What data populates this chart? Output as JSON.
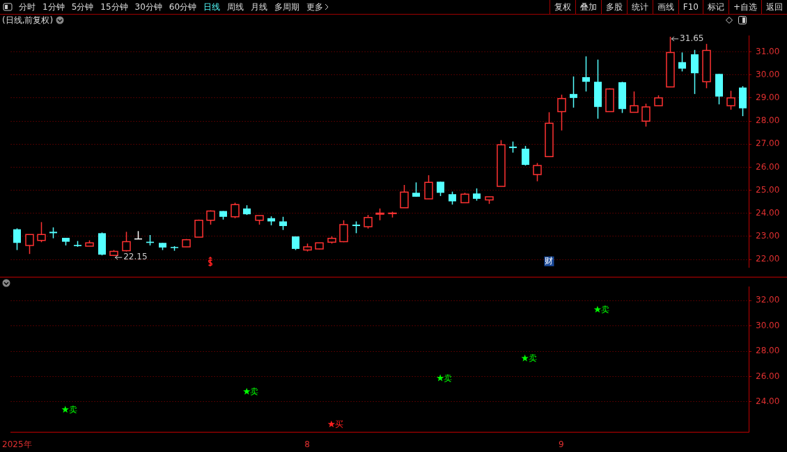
{
  "chart_data": [
    {
      "type": "other",
      "annotations": [
        "分时",
        "1分钟",
        "5分钟",
        "15分钟",
        "30分钟",
        "60分钟",
        "日线",
        "周线",
        "月线",
        "多周期",
        "更多",
        "复权",
        "叠加",
        "多股",
        "统计",
        "画线",
        "F10",
        "标记",
        "+自选",
        "返回"
      ]
    },
    {
      "type": "candlestick",
      "title": "(日线,前复权)",
      "categories": [
        null,
        null,
        null,
        null,
        null,
        null,
        null,
        null,
        null,
        null,
        null,
        null,
        null,
        null,
        null,
        null,
        null,
        null,
        null,
        null,
        null,
        null,
        null,
        null,
        null,
        null,
        null,
        null,
        null,
        null,
        null,
        null,
        null,
        null,
        null,
        null,
        null,
        null,
        null,
        null,
        null,
        null,
        null,
        null,
        null,
        null,
        null,
        null,
        null,
        null,
        null,
        null,
        null,
        null,
        null,
        null,
        null,
        null,
        null,
        null,
        null
      ],
      "ohlc": [
        [
          23.31,
          23.35,
          22.41,
          22.72
        ],
        [
          22.61,
          23.08,
          22.24,
          23.08
        ],
        [
          22.83,
          23.62,
          22.75,
          23.08
        ],
        [
          23.2,
          23.39,
          22.92,
          23.14
        ],
        [
          22.94,
          22.94,
          22.61,
          22.77
        ],
        [
          22.63,
          22.8,
          22.55,
          22.58
        ],
        [
          22.58,
          22.83,
          22.58,
          22.72
        ],
        [
          23.14,
          23.17,
          22.18,
          22.21
        ],
        [
          22.18,
          22.41,
          22.15,
          22.35
        ],
        [
          22.38,
          23.2,
          22.35,
          22.77
        ],
        [
          22.89,
          23.23,
          22.89,
          22.89
        ],
        [
          22.77,
          23.06,
          22.61,
          22.72
        ],
        [
          22.72,
          22.72,
          22.41,
          22.52
        ],
        [
          22.52,
          22.58,
          22.38,
          22.49
        ],
        [
          22.55,
          22.89,
          22.55,
          22.86
        ],
        [
          22.97,
          23.73,
          22.97,
          23.7
        ],
        [
          23.7,
          24.13,
          23.51,
          24.1
        ],
        [
          24.1,
          24.1,
          23.73,
          23.85
        ],
        [
          23.85,
          24.46,
          23.79,
          24.38
        ],
        [
          24.21,
          24.35,
          23.93,
          23.96
        ],
        [
          23.7,
          23.9,
          23.51,
          23.9
        ],
        [
          23.79,
          23.87,
          23.48,
          23.65
        ],
        [
          23.65,
          23.85,
          23.28,
          23.45
        ],
        [
          23.0,
          23.0,
          22.41,
          22.46
        ],
        [
          22.41,
          22.69,
          22.35,
          22.55
        ],
        [
          22.46,
          22.72,
          22.44,
          22.72
        ],
        [
          22.75,
          23.0,
          22.69,
          22.92
        ],
        [
          22.77,
          23.7,
          22.75,
          23.51
        ],
        [
          23.51,
          23.65,
          23.14,
          23.45
        ],
        [
          23.42,
          23.93,
          23.34,
          23.82
        ],
        [
          23.96,
          24.21,
          23.7,
          24.01
        ],
        [
          23.99,
          24.07,
          23.82,
          24.01
        ],
        [
          24.24,
          25.23,
          24.24,
          24.92
        ],
        [
          24.89,
          25.34,
          24.72,
          24.72
        ],
        [
          24.63,
          25.65,
          24.63,
          25.34
        ],
        [
          25.37,
          25.37,
          24.75,
          24.89
        ],
        [
          24.83,
          24.94,
          24.38,
          24.52
        ],
        [
          24.46,
          24.89,
          24.46,
          24.83
        ],
        [
          24.86,
          25.08,
          24.55,
          24.63
        ],
        [
          24.58,
          24.72,
          24.41,
          24.72
        ],
        [
          25.17,
          27.17,
          25.17,
          26.97
        ],
        [
          26.89,
          27.11,
          26.63,
          26.83
        ],
        [
          26.8,
          26.92,
          26.07,
          26.1
        ],
        [
          25.68,
          26.18,
          25.39,
          26.07
        ],
        [
          26.46,
          28.38,
          26.44,
          27.9
        ],
        [
          28.41,
          29.14,
          27.59,
          28.97
        ],
        [
          29.17,
          29.93,
          28.58,
          29.0
        ],
        [
          29.9,
          30.8,
          29.28,
          29.7
        ],
        [
          29.7,
          30.66,
          28.1,
          28.61
        ],
        [
          28.41,
          29.42,
          28.41,
          29.39
        ],
        [
          29.68,
          29.7,
          28.35,
          28.52
        ],
        [
          28.38,
          29.28,
          28.38,
          28.66
        ],
        [
          27.99,
          28.75,
          27.76,
          28.61
        ],
        [
          28.66,
          29.11,
          28.66,
          29.0
        ],
        [
          29.48,
          31.65,
          29.48,
          30.97
        ],
        [
          30.55,
          30.97,
          30.15,
          30.27
        ],
        [
          30.89,
          31.08,
          29.17,
          30.07
        ],
        [
          29.7,
          31.34,
          29.42,
          31.06
        ],
        [
          30.04,
          30.04,
          28.72,
          29.06
        ],
        [
          28.66,
          29.31,
          28.49,
          29.0
        ],
        [
          29.45,
          29.51,
          28.21,
          28.55
        ]
      ],
      "colors": [
        "#54ffff",
        "#ff3232",
        "#ff3232",
        "#54ffff",
        "#54ffff",
        "#54ffff",
        "#ff3232",
        "#54ffff",
        "#ff3232",
        "#ff3232",
        "#ffffff",
        "#54ffff",
        "#54ffff",
        "#54ffff",
        "#ff3232",
        "#ff3232",
        "#ff3232",
        "#54ffff",
        "#ff3232",
        "#54ffff",
        "#ff3232",
        "#54ffff",
        "#54ffff",
        "#54ffff",
        "#ff3232",
        "#ff3232",
        "#ff3232",
        "#ff3232",
        "#54ffff",
        "#ff3232",
        "#ff3232",
        "#ff3232",
        "#ff3232",
        "#54ffff",
        "#ff3232",
        "#54ffff",
        "#54ffff",
        "#ff3232",
        "#54ffff",
        "#ff3232",
        "#ff3232",
        "#54ffff",
        "#54ffff",
        "#ff3232",
        "#ff3232",
        "#ff3232",
        "#54ffff",
        "#54ffff",
        "#54ffff",
        "#ff3232",
        "#54ffff",
        "#ff3232",
        "#ff3232",
        "#ff3232",
        "#ff3232",
        "#54ffff",
        "#54ffff",
        "#ff3232",
        "#54ffff",
        "#ff3232",
        "#54ffff"
      ],
      "ylim": [
        21.65,
        31.7
      ],
      "yticks": [
        {
          "value": 22,
          "label": "22.00"
        },
        {
          "value": 23,
          "label": "23.00"
        },
        {
          "value": 24,
          "label": "24.00"
        },
        {
          "value": 25,
          "label": "25.00"
        },
        {
          "value": 26,
          "label": "26.00"
        },
        {
          "value": 27,
          "label": "27.00"
        },
        {
          "value": 28,
          "label": "28.00"
        },
        {
          "value": 29,
          "label": "29.00"
        },
        {
          "value": 30,
          "label": "30.00"
        },
        {
          "value": 31,
          "label": "31.00"
        }
      ],
      "grid": "y",
      "tick_labels": "y",
      "annotations": [
        "31.65",
        "22.15",
        "财"
      ]
    },
    {
      "type": "scatter",
      "categories": [
        "2025年",
        null,
        null,
        null,
        null,
        null,
        null,
        null,
        null,
        null,
        null,
        null,
        null,
        null,
        null,
        null,
        null,
        null,
        null,
        null,
        null,
        null,
        null,
        null,
        "8",
        null,
        null,
        null,
        null,
        null,
        null,
        null,
        null,
        null,
        null,
        null,
        null,
        null,
        null,
        null,
        null,
        null,
        null,
        null,
        null,
        "9",
        null,
        null,
        null,
        null,
        null,
        null,
        null,
        null,
        null,
        null,
        null,
        null,
        null,
        null,
        null
      ],
      "series": [
        {
          "color": "#00ff00",
          "values": [
            null,
            null,
            null,
            null,
            23.39,
            null,
            null,
            null,
            null,
            null,
            null,
            null,
            null,
            null,
            null,
            null,
            null,
            null,
            null,
            24.81,
            null,
            null,
            null,
            null,
            null,
            null,
            null,
            null,
            null,
            null,
            null,
            null,
            null,
            null,
            null,
            25.87,
            null,
            null,
            null,
            null,
            null,
            null,
            27.44,
            null,
            null,
            null,
            null,
            null,
            31.29,
            null,
            null,
            null,
            null,
            null,
            null,
            null,
            null,
            null,
            null,
            null,
            null
          ],
          "value_labels": [
            null,
            null,
            null,
            null,
            "卖",
            null,
            null,
            null,
            null,
            null,
            null,
            null,
            null,
            null,
            null,
            null,
            null,
            null,
            null,
            "卖",
            null,
            null,
            null,
            null,
            null,
            null,
            null,
            null,
            null,
            null,
            null,
            null,
            null,
            null,
            null,
            "卖",
            null,
            null,
            null,
            null,
            null,
            null,
            "卖",
            null,
            null,
            null,
            null,
            null,
            "卖",
            null,
            null,
            null,
            null,
            null,
            null,
            null,
            null,
            null,
            null,
            null,
            null
          ]
        },
        {
          "color": "#ff2020",
          "values": [
            null,
            null,
            null,
            null,
            null,
            null,
            null,
            null,
            null,
            null,
            null,
            null,
            null,
            null,
            null,
            null,
            null,
            null,
            null,
            null,
            null,
            null,
            null,
            null,
            null,
            null,
            22.23,
            null,
            null,
            null,
            null,
            null,
            null,
            null,
            null,
            null,
            null,
            null,
            null,
            null,
            null,
            null,
            null,
            null,
            null,
            null,
            null,
            null,
            null,
            null,
            null,
            null,
            null,
            null,
            null,
            null,
            null,
            null,
            null,
            null,
            null
          ],
          "value_labels": [
            null,
            null,
            null,
            null,
            null,
            null,
            null,
            null,
            null,
            null,
            null,
            null,
            null,
            null,
            null,
            null,
            null,
            null,
            null,
            null,
            null,
            null,
            null,
            null,
            null,
            null,
            "买",
            null,
            null,
            null,
            null,
            null,
            null,
            null,
            null,
            null,
            null,
            null,
            null,
            null,
            null,
            null,
            null,
            null,
            null,
            null,
            null,
            null,
            null,
            null,
            null,
            null,
            null,
            null,
            null,
            null,
            null,
            null,
            null,
            null,
            null
          ]
        }
      ],
      "ylim": [
        21.6,
        33.1
      ],
      "yticks": [
        {
          "value": 24,
          "label": "24.00"
        },
        {
          "value": 26,
          "label": "26.00"
        },
        {
          "value": 28,
          "label": "28.00"
        },
        {
          "value": 30,
          "label": "30.00"
        },
        {
          "value": 32,
          "label": "32.00"
        }
      ],
      "grid": "y",
      "marker": "star"
    }
  ]
}
